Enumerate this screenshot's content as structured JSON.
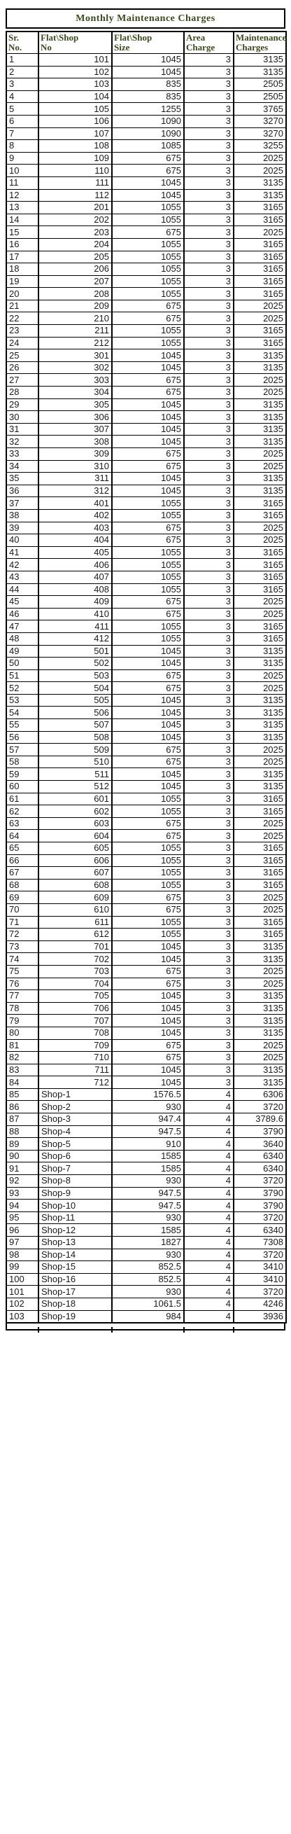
{
  "title": "Monthly Maintenance Charges",
  "headers": {
    "sr": "Sr.\nNo.",
    "flat_no": "Flat\\Shop\nNo",
    "size": "Flat\\Shop\nSize",
    "area": "Area\nCharge",
    "maint": "Maintenance\nCharges"
  },
  "rows": [
    [
      "1",
      "101",
      "1045",
      "3",
      "3135"
    ],
    [
      "2",
      "102",
      "1045",
      "3",
      "3135"
    ],
    [
      "3",
      "103",
      "835",
      "3",
      "2505"
    ],
    [
      "4",
      "104",
      "835",
      "3",
      "2505"
    ],
    [
      "5",
      "105",
      "1255",
      "3",
      "3765"
    ],
    [
      "6",
      "106",
      "1090",
      "3",
      "3270"
    ],
    [
      "7",
      "107",
      "1090",
      "3",
      "3270"
    ],
    [
      "8",
      "108",
      "1085",
      "3",
      "3255"
    ],
    [
      "9",
      "109",
      "675",
      "3",
      "2025"
    ],
    [
      "10",
      "110",
      "675",
      "3",
      "2025"
    ],
    [
      "11",
      "111",
      "1045",
      "3",
      "3135"
    ],
    [
      "12",
      "112",
      "1045",
      "3",
      "3135"
    ],
    [
      "13",
      "201",
      "1055",
      "3",
      "3165"
    ],
    [
      "14",
      "202",
      "1055",
      "3",
      "3165"
    ],
    [
      "15",
      "203",
      "675",
      "3",
      "2025"
    ],
    [
      "16",
      "204",
      "1055",
      "3",
      "3165"
    ],
    [
      "17",
      "205",
      "1055",
      "3",
      "3165"
    ],
    [
      "18",
      "206",
      "1055",
      "3",
      "3165"
    ],
    [
      "19",
      "207",
      "1055",
      "3",
      "3165"
    ],
    [
      "20",
      "208",
      "1055",
      "3",
      "3165"
    ],
    [
      "21",
      "209",
      "675",
      "3",
      "2025"
    ],
    [
      "22",
      "210",
      "675",
      "3",
      "2025"
    ],
    [
      "23",
      "211",
      "1055",
      "3",
      "3165"
    ],
    [
      "24",
      "212",
      "1055",
      "3",
      "3165"
    ],
    [
      "25",
      "301",
      "1045",
      "3",
      "3135"
    ],
    [
      "26",
      "302",
      "1045",
      "3",
      "3135"
    ],
    [
      "27",
      "303",
      "675",
      "3",
      "2025"
    ],
    [
      "28",
      "304",
      "675",
      "3",
      "2025"
    ],
    [
      "29",
      "305",
      "1045",
      "3",
      "3135"
    ],
    [
      "30",
      "306",
      "1045",
      "3",
      "3135"
    ],
    [
      "31",
      "307",
      "1045",
      "3",
      "3135"
    ],
    [
      "32",
      "308",
      "1045",
      "3",
      "3135"
    ],
    [
      "33",
      "309",
      "675",
      "3",
      "2025"
    ],
    [
      "34",
      "310",
      "675",
      "3",
      "2025"
    ],
    [
      "35",
      "311",
      "1045",
      "3",
      "3135"
    ],
    [
      "36",
      "312",
      "1045",
      "3",
      "3135"
    ],
    [
      "37",
      "401",
      "1055",
      "3",
      "3165"
    ],
    [
      "38",
      "402",
      "1055",
      "3",
      "3165"
    ],
    [
      "39",
      "403",
      "675",
      "3",
      "2025"
    ],
    [
      "40",
      "404",
      "675",
      "3",
      "2025"
    ],
    [
      "41",
      "405",
      "1055",
      "3",
      "3165"
    ],
    [
      "42",
      "406",
      "1055",
      "3",
      "3165"
    ],
    [
      "43",
      "407",
      "1055",
      "3",
      "3165"
    ],
    [
      "44",
      "408",
      "1055",
      "3",
      "3165"
    ],
    [
      "45",
      "409",
      "675",
      "3",
      "2025"
    ],
    [
      "46",
      "410",
      "675",
      "3",
      "2025"
    ],
    [
      "47",
      "411",
      "1055",
      "3",
      "3165"
    ],
    [
      "48",
      "412",
      "1055",
      "3",
      "3165"
    ],
    [
      "49",
      "501",
      "1045",
      "3",
      "3135"
    ],
    [
      "50",
      "502",
      "1045",
      "3",
      "3135"
    ],
    [
      "51",
      "503",
      "675",
      "3",
      "2025"
    ],
    [
      "52",
      "504",
      "675",
      "3",
      "2025"
    ],
    [
      "53",
      "505",
      "1045",
      "3",
      "3135"
    ],
    [
      "54",
      "506",
      "1045",
      "3",
      "3135"
    ],
    [
      "55",
      "507",
      "1045",
      "3",
      "3135"
    ],
    [
      "56",
      "508",
      "1045",
      "3",
      "3135"
    ],
    [
      "57",
      "509",
      "675",
      "3",
      "2025"
    ],
    [
      "58",
      "510",
      "675",
      "3",
      "2025"
    ],
    [
      "59",
      "511",
      "1045",
      "3",
      "3135"
    ],
    [
      "60",
      "512",
      "1045",
      "3",
      "3135"
    ],
    [
      "61",
      "601",
      "1055",
      "3",
      "3165"
    ],
    [
      "62",
      "602",
      "1055",
      "3",
      "3165"
    ],
    [
      "63",
      "603",
      "675",
      "3",
      "2025"
    ],
    [
      "64",
      "604",
      "675",
      "3",
      "2025"
    ],
    [
      "65",
      "605",
      "1055",
      "3",
      "3165"
    ],
    [
      "66",
      "606",
      "1055",
      "3",
      "3165"
    ],
    [
      "67",
      "607",
      "1055",
      "3",
      "3165"
    ],
    [
      "68",
      "608",
      "1055",
      "3",
      "3165"
    ],
    [
      "69",
      "609",
      "675",
      "3",
      "2025"
    ],
    [
      "70",
      "610",
      "675",
      "3",
      "2025"
    ],
    [
      "71",
      "611",
      "1055",
      "3",
      "3165"
    ],
    [
      "72",
      "612",
      "1055",
      "3",
      "3165"
    ],
    [
      "73",
      "701",
      "1045",
      "3",
      "3135"
    ],
    [
      "74",
      "702",
      "1045",
      "3",
      "3135"
    ],
    [
      "75",
      "703",
      "675",
      "3",
      "2025"
    ],
    [
      "76",
      "704",
      "675",
      "3",
      "2025"
    ],
    [
      "77",
      "705",
      "1045",
      "3",
      "3135"
    ],
    [
      "78",
      "706",
      "1045",
      "3",
      "3135"
    ],
    [
      "79",
      "707",
      "1045",
      "3",
      "3135"
    ],
    [
      "80",
      "708",
      "1045",
      "3",
      "3135"
    ],
    [
      "81",
      "709",
      "675",
      "3",
      "2025"
    ],
    [
      "82",
      "710",
      "675",
      "3",
      "2025"
    ],
    [
      "83",
      "711",
      "1045",
      "3",
      "3135"
    ],
    [
      "84",
      "712",
      "1045",
      "3",
      "3135"
    ],
    [
      "85",
      "Shop-1",
      "1576.5",
      "4",
      "6306"
    ],
    [
      "86",
      "Shop-2",
      "930",
      "4",
      "3720"
    ],
    [
      "87",
      "Shop-3",
      "947.4",
      "4",
      "3789.6"
    ],
    [
      "88",
      "Shop-4",
      "947.5",
      "4",
      "3790"
    ],
    [
      "89",
      "Shop-5",
      "910",
      "4",
      "3640"
    ],
    [
      "90",
      "Shop-6",
      "1585",
      "4",
      "6340"
    ],
    [
      "91",
      "Shop-7",
      "1585",
      "4",
      "6340"
    ],
    [
      "92",
      "Shop-8",
      "930",
      "4",
      "3720"
    ],
    [
      "93",
      "Shop-9",
      "947.5",
      "4",
      "3790"
    ],
    [
      "94",
      "Shop-10",
      "947.5",
      "4",
      "3790"
    ],
    [
      "95",
      "Shop-11",
      "930",
      "4",
      "3720"
    ],
    [
      "96",
      "Shop-12",
      "1585",
      "4",
      "6340"
    ],
    [
      "97",
      "Shop-13",
      "1827",
      "4",
      "7308"
    ],
    [
      "98",
      "Shop-14",
      "930",
      "4",
      "3720"
    ],
    [
      "99",
      "Shop-15",
      "852.5",
      "4",
      "3410"
    ],
    [
      "100",
      "Shop-16",
      "852.5",
      "4",
      "3410"
    ],
    [
      "101",
      "Shop-17",
      "930",
      "4",
      "3720"
    ],
    [
      "102",
      "Shop-18",
      "1061.5",
      "4",
      "4246"
    ],
    [
      "103",
      "Shop-19",
      "984",
      "4",
      "3936"
    ]
  ]
}
